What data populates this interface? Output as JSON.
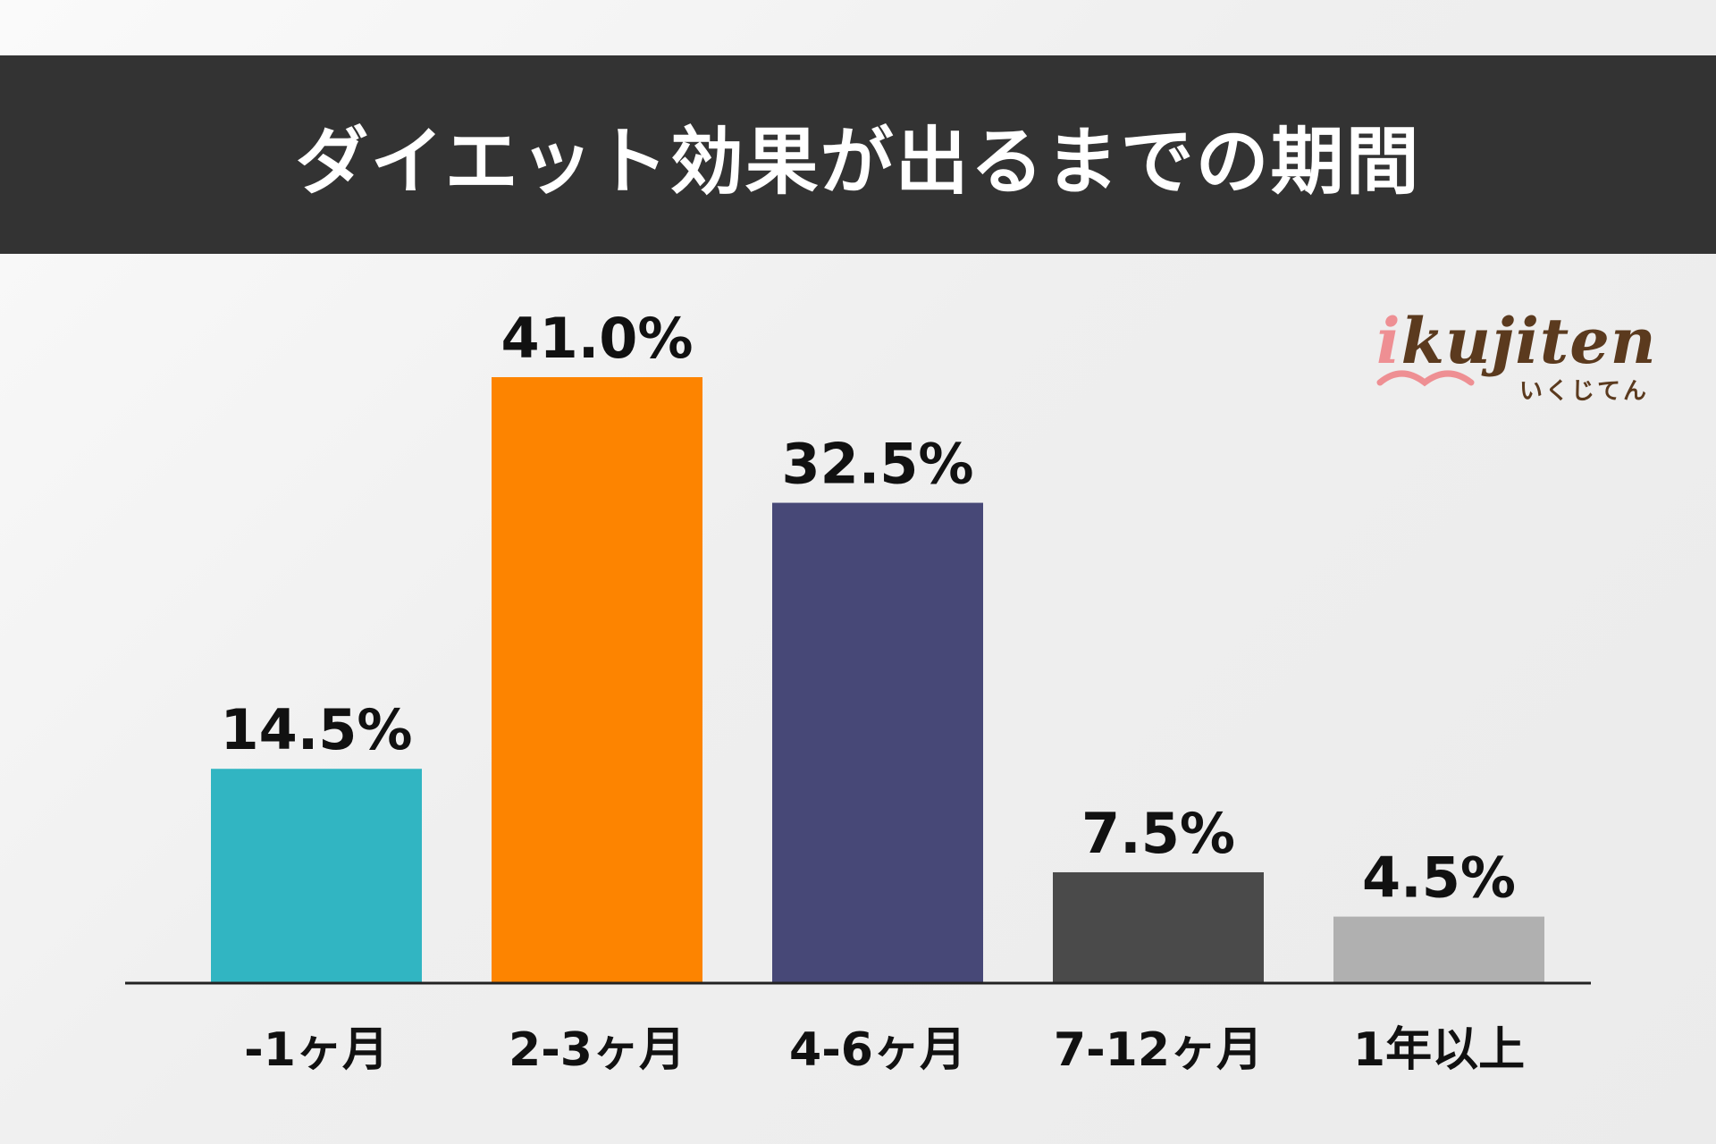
{
  "title": "ダイエット効果が出るまでの期間",
  "logo": {
    "first_letter": "i",
    "rest": "kujiten",
    "sub": "いくじてん"
  },
  "colors": {
    "title_bar": "#333333",
    "axis": "#222222",
    "label_text": "#111111"
  },
  "chart_data": {
    "type": "bar",
    "categories": [
      "-1ヶ月",
      "2-3ヶ月",
      "4-6ヶ月",
      "7-12ヶ月",
      "1年以上"
    ],
    "values": [
      14.5,
      41.0,
      32.5,
      7.5,
      4.5
    ],
    "value_labels": [
      "14.5%",
      "41.0%",
      "32.5%",
      "7.5%",
      "4.5%"
    ],
    "bar_colors": [
      "#31b5c2",
      "#fd8400",
      "#474877",
      "#4a4a4a",
      "#b0b0b0"
    ],
    "title": "ダイエット効果が出るまでの期間",
    "xlabel": "",
    "ylabel": "",
    "ylim": [
      0,
      41.0
    ],
    "grid": false,
    "legend": "none"
  }
}
